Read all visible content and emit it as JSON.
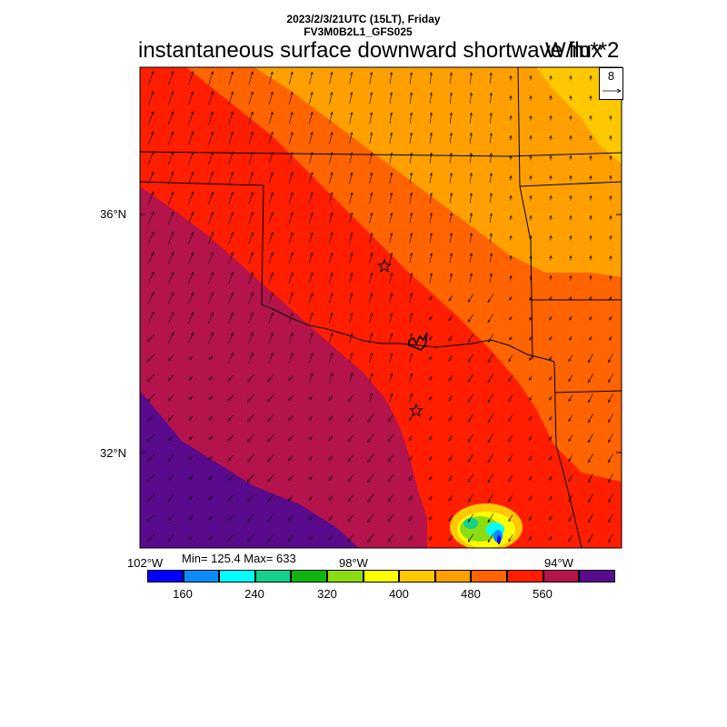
{
  "header": {
    "date_line": "2023/2/3/21UTC (15LT), Friday",
    "model_line": "FV3M0B2L1_GFS025",
    "title": "instantaneous surface downward shortwave flux",
    "units": "W/m**2"
  },
  "map": {
    "lat_labels": [
      "36°N",
      "32°N"
    ],
    "lon_labels": [
      "102°W",
      "98°W",
      "94°W"
    ],
    "reference_vector_value": "8",
    "star_markers": [
      "star-marker-north",
      "star-marker-south"
    ]
  },
  "stats": {
    "min_max": "Min= 125.4 Max= 633"
  },
  "colorbar": {
    "colors": [
      "#0000ff",
      "#0a8cff",
      "#00ffff",
      "#14d28c",
      "#0fb40f",
      "#8cdc14",
      "#ffff00",
      "#ffc800",
      "#ffa000",
      "#ff6400",
      "#ff1e00",
      "#b4144b",
      "#5a0a8c"
    ],
    "labels": [
      "160",
      "240",
      "320",
      "400",
      "480",
      "560"
    ]
  },
  "colors": {
    "band_purple": "#5a0a8c",
    "band_maroon": "#b4144b",
    "band_red": "#ff1e00",
    "band_orange_red": "#ff6400",
    "band_orange": "#ffa000",
    "band_amber": "#ffc800"
  }
}
